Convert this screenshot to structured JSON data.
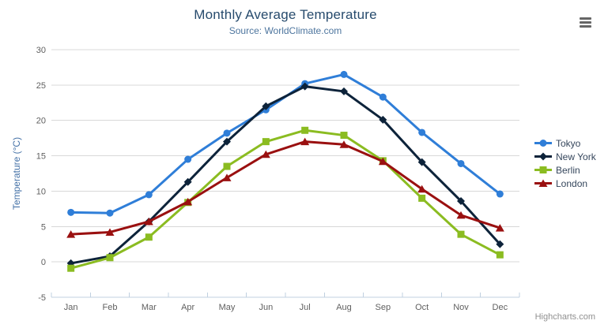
{
  "header": {
    "title": "Monthly Average Temperature",
    "subtitle": "Source: WorldClimate.com"
  },
  "credits": "Highcharts.com",
  "icons": {
    "export_menu": "hamburger-icon"
  },
  "colors": {
    "title": "#274b6d",
    "subtitle": "#4d759e",
    "axis_title": "#4572a7",
    "axis_labels": "#606060",
    "gridline": "#d8d8d8",
    "axis_line": "#c0d0e0",
    "legend_text": "#35465c",
    "credits": "#909090"
  },
  "chart_data": {
    "type": "line",
    "title": "Monthly Average Temperature",
    "subtitle": "Source: WorldClimate.com",
    "xlabel": "",
    "ylabel": "Temperature (°C)",
    "ylim": [
      -5,
      30
    ],
    "yticks": [
      -5,
      0,
      5,
      10,
      15,
      20,
      25,
      30
    ],
    "grid": true,
    "legend_position": "right",
    "categories": [
      "Jan",
      "Feb",
      "Mar",
      "Apr",
      "May",
      "Jun",
      "Jul",
      "Aug",
      "Sep",
      "Oct",
      "Nov",
      "Dec"
    ],
    "series": [
      {
        "name": "Tokyo",
        "color": "#2f7ed8",
        "marker": "circle",
        "values": [
          7.0,
          6.9,
          9.5,
          14.5,
          18.2,
          21.5,
          25.2,
          26.5,
          23.3,
          18.3,
          13.9,
          9.6
        ]
      },
      {
        "name": "New York",
        "color": "#0d233a",
        "marker": "diamond",
        "values": [
          -0.2,
          0.8,
          5.7,
          11.3,
          17.0,
          22.0,
          24.8,
          24.1,
          20.1,
          14.1,
          8.6,
          2.5
        ]
      },
      {
        "name": "Berlin",
        "color": "#8bbc21",
        "marker": "square",
        "values": [
          -0.9,
          0.6,
          3.5,
          8.4,
          13.5,
          17.0,
          18.6,
          17.9,
          14.3,
          9.0,
          3.9,
          1.0
        ]
      },
      {
        "name": "London",
        "color": "#9a1010",
        "marker": "triangle-up",
        "values": [
          3.9,
          4.2,
          5.7,
          8.5,
          11.9,
          15.2,
          17.0,
          16.6,
          14.2,
          10.3,
          6.6,
          4.8
        ]
      }
    ]
  }
}
